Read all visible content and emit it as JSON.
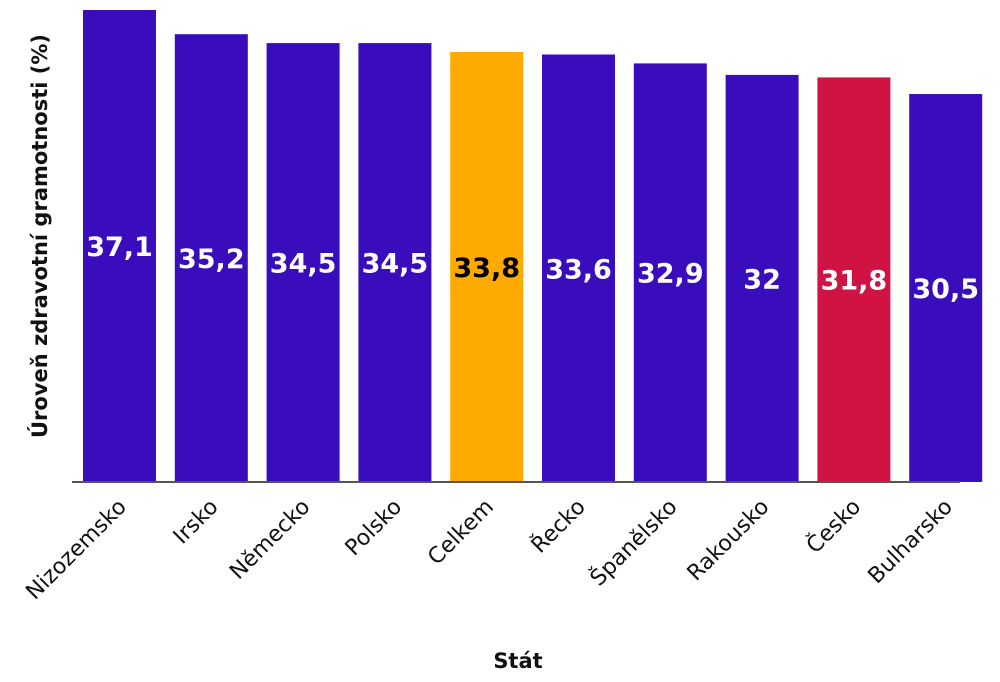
{
  "chart_data": {
    "type": "bar",
    "title": "",
    "xlabel": "Stát",
    "ylabel": "Úroveň zdravotní gramotnosti (%)",
    "categories": [
      "Nizozemsko",
      "Irsko",
      "Německo",
      "Polsko",
      "Celkem",
      "Řecko",
      "Španělsko",
      "Rakousko",
      "Česko",
      "Bulharsko"
    ],
    "values": [
      37.1,
      35.2,
      34.5,
      34.5,
      33.8,
      33.6,
      32.9,
      32,
      31.8,
      30.5
    ],
    "value_labels": [
      "37,1",
      "35,2",
      "34,5",
      "34,5",
      "33,8",
      "33,6",
      "32,9",
      "32",
      "31,8",
      "30,5"
    ],
    "ylim": [
      0,
      37.1
    ],
    "grid": false,
    "colors": {
      "default": "#3A0DBC",
      "highlight_total": "#FFAA00",
      "highlight_country": "#D01343",
      "label_default": "#FFFFFF",
      "label_total": "#000000"
    },
    "bar_colors": [
      "#3A0DBC",
      "#3A0DBC",
      "#3A0DBC",
      "#3A0DBC",
      "#FFAA00",
      "#3A0DBC",
      "#3A0DBC",
      "#3A0DBC",
      "#D01343",
      "#3A0DBC"
    ],
    "label_colors": [
      "#FFFFFF",
      "#FFFFFF",
      "#FFFFFF",
      "#FFFFFF",
      "#000000",
      "#FFFFFF",
      "#FFFFFF",
      "#FFFFFF",
      "#FFFFFF",
      "#FFFFFF"
    ]
  }
}
